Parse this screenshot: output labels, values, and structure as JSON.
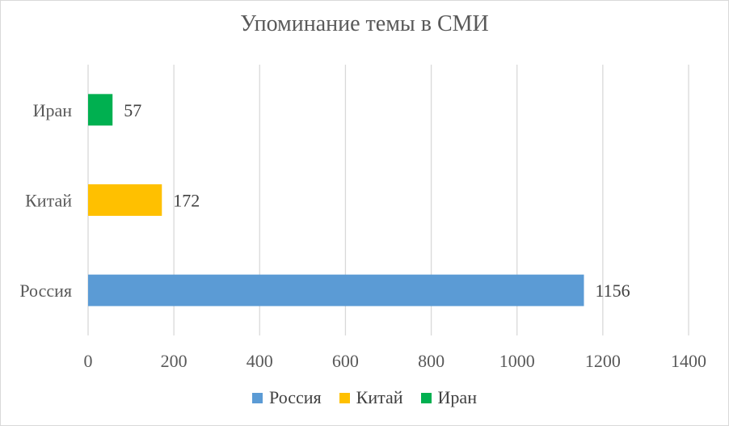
{
  "chart_data": {
    "type": "bar",
    "orientation": "horizontal",
    "title": "Упоминание темы в СМИ",
    "categories": [
      "Россия",
      "Китай",
      "Иран"
    ],
    "values": [
      1156,
      172,
      57
    ],
    "colors": [
      "#5b9bd5",
      "#ffc000",
      "#00b050"
    ],
    "xlim": [
      0,
      1400
    ],
    "x_ticks": [
      "0",
      "200",
      "400",
      "600",
      "800",
      "1000",
      "1200",
      "1400"
    ],
    "data_labels": [
      "1156",
      "172",
      "57"
    ],
    "grid": true,
    "legend_position": "bottom",
    "legend": [
      "Россия",
      "Китай",
      "Иран"
    ]
  }
}
